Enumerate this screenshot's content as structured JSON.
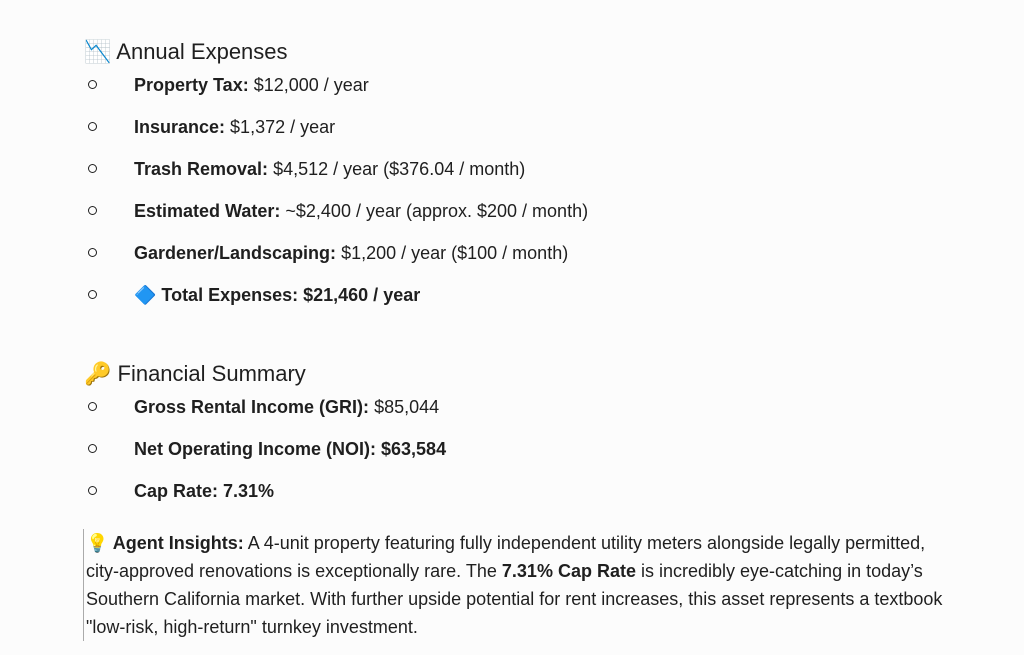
{
  "sections": [
    {
      "title": "📉 Annual Expenses",
      "items": [
        {
          "label": "Property Tax:",
          "value": "$12,000 / year"
        },
        {
          "label": "Insurance:",
          "value": "$1,372 / year"
        },
        {
          "label": "Trash Removal:",
          "value": "$4,512 / year ($376.04 / month)"
        },
        {
          "label": "Estimated Water:",
          "value": "~$2,400 / year (approx. $200 / month)"
        },
        {
          "label": "Gardener/Landscaping:",
          "value": "$1,200 / year ($100 / month)"
        },
        {
          "label": "🔷 Total Expenses: $21,460 / year"
        }
      ]
    },
    {
      "title": "🔑 Financial Summary",
      "items": [
        {
          "label": "Gross Rental Income (GRI):",
          "value": "$85,044"
        },
        {
          "label": "Net Operating Income (NOI): $63,584"
        },
        {
          "label": "Cap Rate: 7.31%"
        }
      ]
    }
  ],
  "insight": {
    "heading": "💡 Agent Insights:",
    "text_1": "A 4-unit property featuring fully independent utility meters alongside legally permitted, city-approved renovations is exceptionally rare. The",
    "highlight": "7.31% Cap Rate",
    "text_2": "is incredibly eye-catching in today’s Southern California market. With further upside potential for rent increases, this asset represents a textbook \"low-risk, high-return\" turnkey investment."
  }
}
